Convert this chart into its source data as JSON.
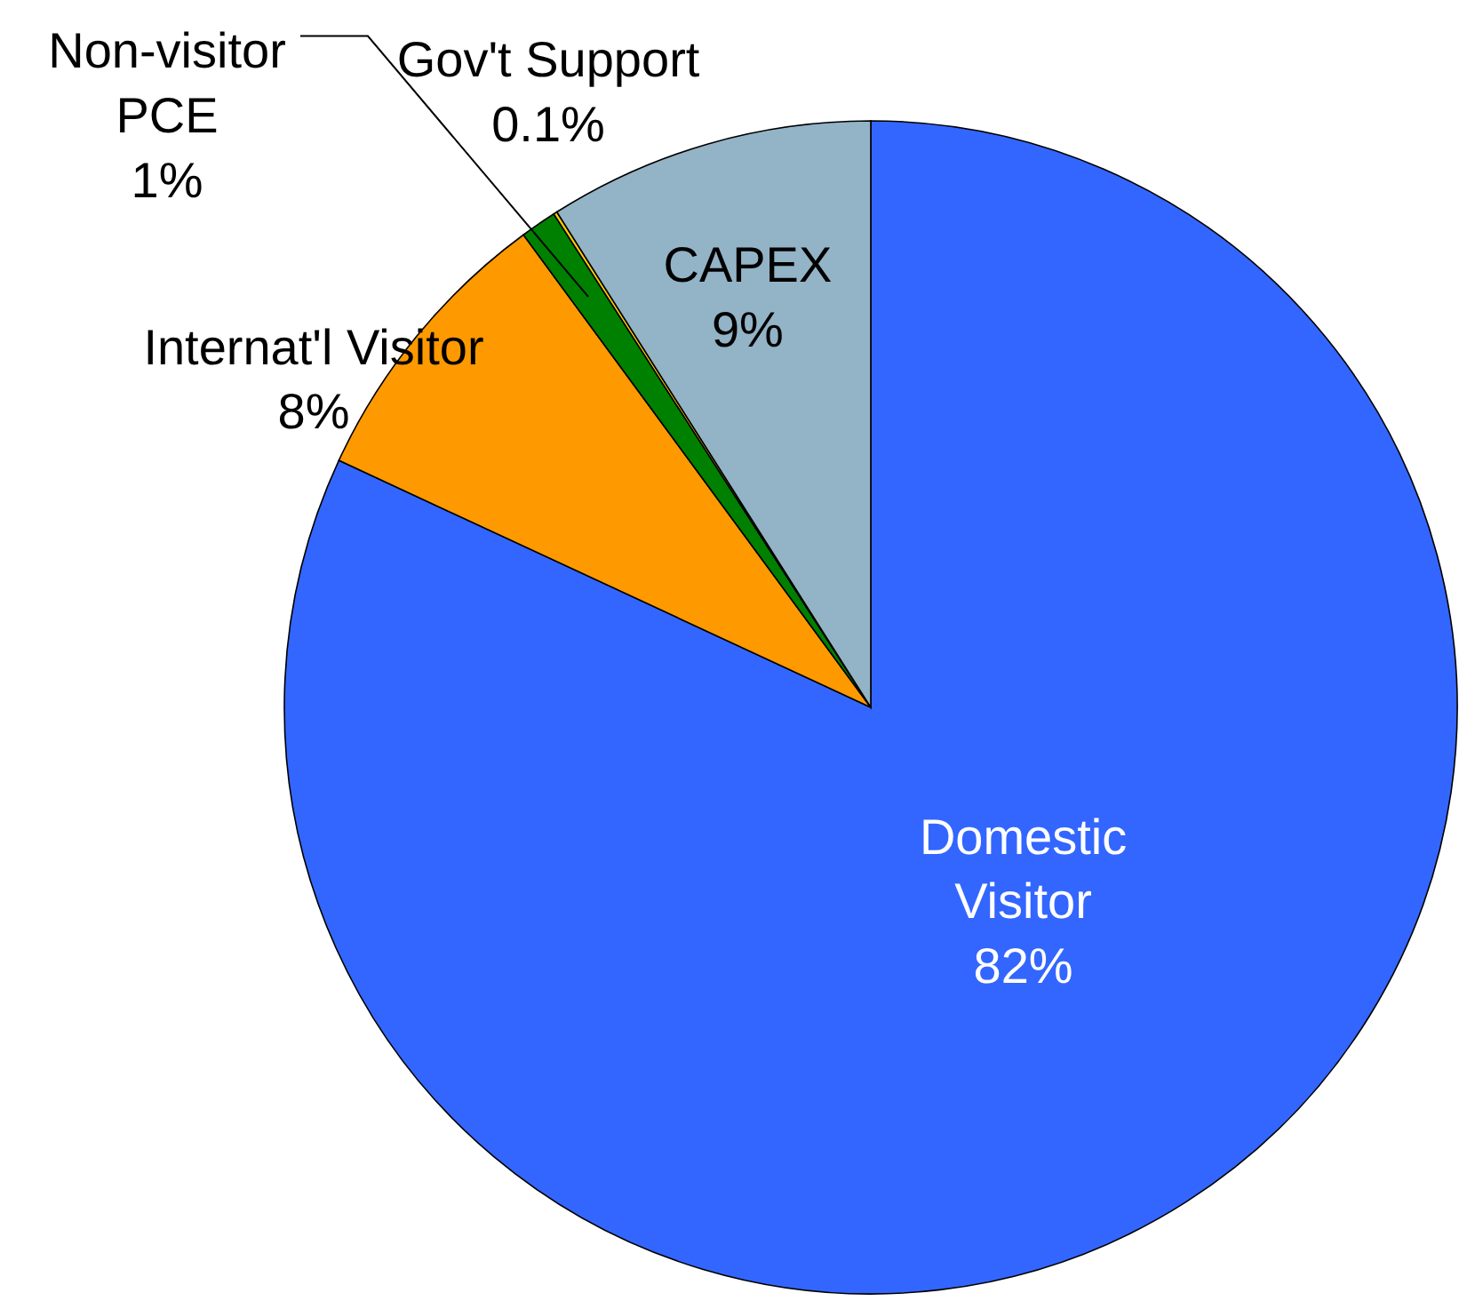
{
  "chart_data": {
    "type": "pie",
    "categories": [
      "Domestic\nVisitor",
      "Internat'l Visitor",
      "Non-visitor\nPCE",
      "Gov't Support",
      "CAPEX"
    ],
    "values": [
      82,
      8,
      1,
      0.1,
      9
    ],
    "value_labels": [
      "82%",
      "8%",
      "1%",
      "0.1%",
      "9%"
    ],
    "colors": [
      "#3366ff",
      "#ff9900",
      "#008000",
      "#ffcc00",
      "#93b3c6"
    ]
  }
}
